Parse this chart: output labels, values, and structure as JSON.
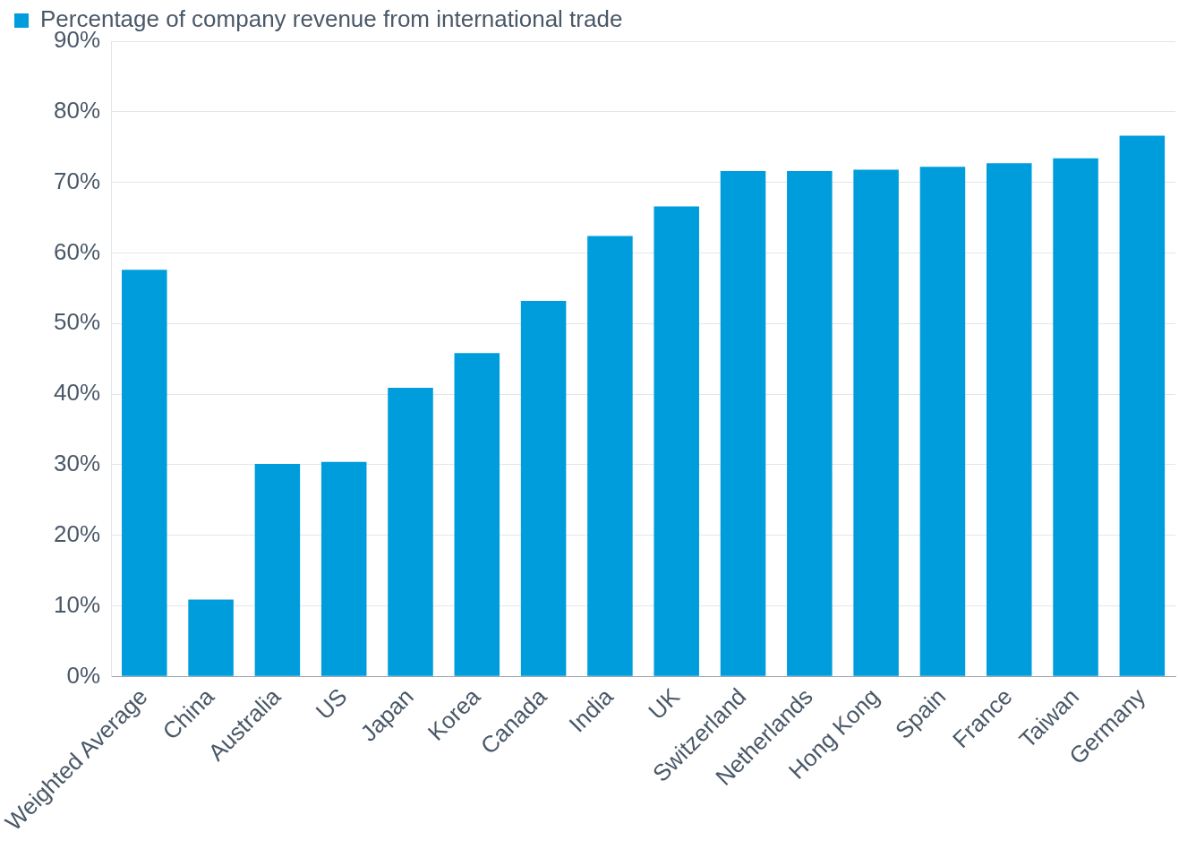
{
  "chart_data": {
    "type": "bar",
    "categories": [
      "Weighted Average",
      "China",
      "Australia",
      "US",
      "Japan",
      "Korea",
      "Canada",
      "India",
      "UK",
      "Switzerland",
      "Netherlands",
      "Hong Kong",
      "Spain",
      "France",
      "Taiwan",
      "Germany"
    ],
    "series": [
      {
        "name": "Percentage of company revenue from international trade",
        "color": "#009ddc",
        "values": [
          57.6,
          10.9,
          30.1,
          30.4,
          40.9,
          45.8,
          53.2,
          62.4,
          66.6,
          71.6,
          71.6,
          71.8,
          72.2,
          72.7,
          73.4,
          76.6
        ]
      }
    ],
    "ylim": [
      0,
      90
    ],
    "yticks": [
      {
        "value": 0,
        "label": "0%"
      },
      {
        "value": 10,
        "label": "10%"
      },
      {
        "value": 20,
        "label": "20%"
      },
      {
        "value": 30,
        "label": "30%"
      },
      {
        "value": 40,
        "label": "40%"
      },
      {
        "value": 50,
        "label": "50%"
      },
      {
        "value": 60,
        "label": "60%"
      },
      {
        "value": 70,
        "label": "70%"
      },
      {
        "value": 80,
        "label": "80%"
      },
      {
        "value": 90,
        "label": "90%"
      }
    ],
    "grid": "y",
    "legend": "top left"
  }
}
